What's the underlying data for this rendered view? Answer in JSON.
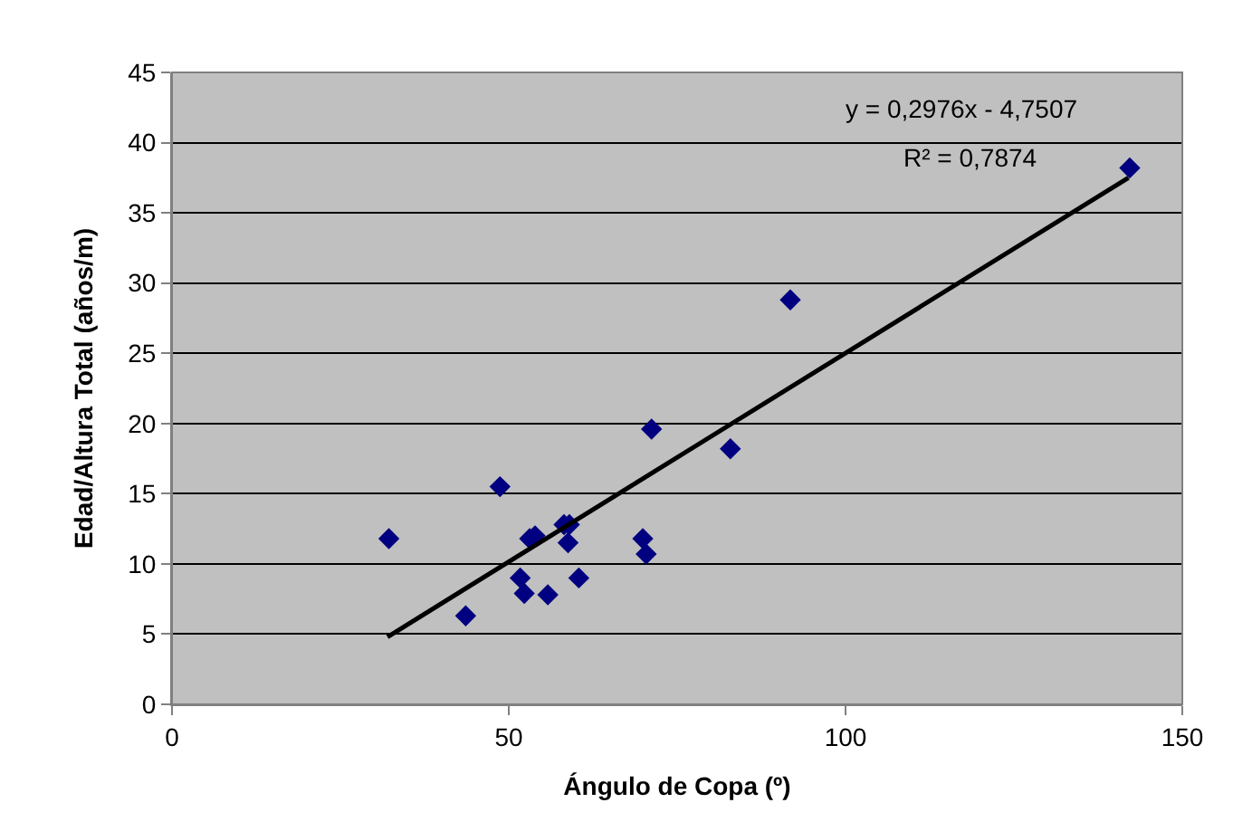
{
  "chart_data": {
    "type": "scatter",
    "xlabel": "Ángulo de Copa (º)",
    "ylabel": "Edad/Altura Total (años/m)",
    "x": [
      32.2,
      48.7,
      43.6,
      51.7,
      52.3,
      53.1,
      53.9,
      55.8,
      58.2,
      59.0,
      58.8,
      60.4,
      69.9,
      70.4,
      71.2,
      82.9,
      91.8,
      142.2
    ],
    "series": [
      {
        "color": "#000080",
        "marker": "diamond",
        "values": [
          11.8,
          15.5,
          6.3,
          9.0,
          7.9,
          11.8,
          12.0,
          7.8,
          12.8,
          12.8,
          11.5,
          9.0,
          11.8,
          10.7,
          19.6,
          18.2,
          28.8,
          38.2
        ]
      },
      {
        "type": "line",
        "color": "#000000",
        "line_style": "solid",
        "marker": "none",
        "x": [
          32,
          142
        ],
        "values": [
          4.8,
          37.5
        ]
      }
    ],
    "annotations": [
      "y = 0,2976x - 4,7507",
      "R² = 0,7874"
    ],
    "xlim": [
      0,
      150
    ],
    "xticks": [
      0,
      50,
      100,
      150
    ],
    "ylim": [
      0,
      45
    ],
    "yticks": [
      0,
      5,
      10,
      15,
      20,
      25,
      30,
      35,
      40,
      45
    ],
    "grid": "y",
    "legend": false
  }
}
